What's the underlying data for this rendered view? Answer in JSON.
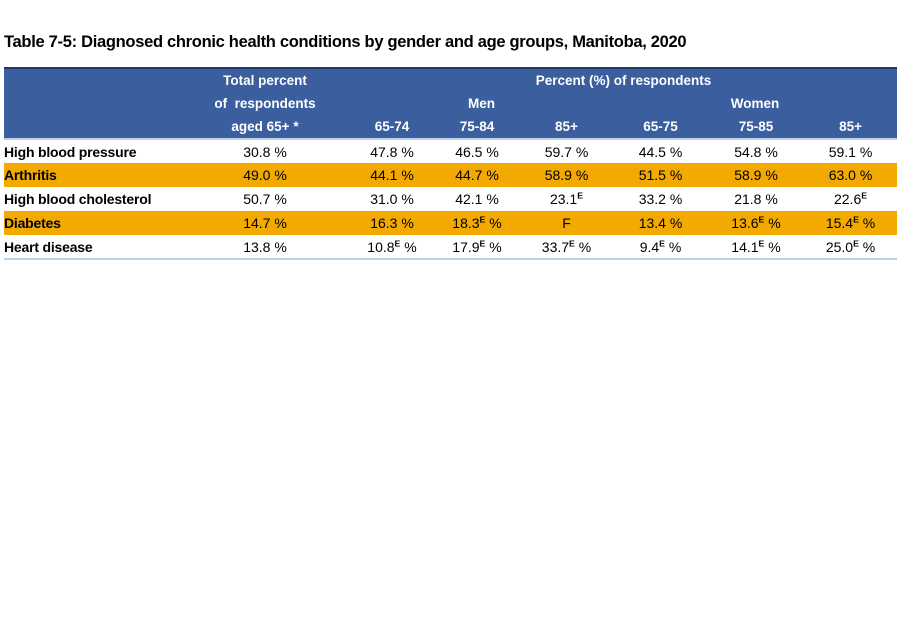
{
  "title": "Table 7-5: Diagnosed chronic health conditions by gender and age groups, Manitoba, 2020",
  "table": {
    "header": {
      "total_lines": [
        "Total percent",
        "of  respondents",
        "aged 65+ *"
      ],
      "group_title": "Percent (%) of respondents",
      "men_label": "Men",
      "women_label": "Women",
      "age_columns": [
        "65-74",
        "75-84",
        "85+",
        "65-75",
        "75-85",
        "85+"
      ]
    },
    "rows": [
      {
        "label": "High blood pressure",
        "highlight": false,
        "cells": [
          "30.8 %",
          "47.8 %",
          "46.5 %",
          "59.7 %",
          "44.5 %",
          "54.8 %",
          "59.1 %"
        ]
      },
      {
        "label": "Arthritis",
        "highlight": true,
        "cells": [
          "49.0 %",
          "44.1 %",
          "44.7 %",
          "58.9 %",
          "51.5 %",
          "58.9 %",
          "63.0 %"
        ]
      },
      {
        "label": "High blood cholesterol",
        "highlight": false,
        "cells": [
          "50.7 %",
          "31.0 %",
          "42.1 %",
          "23.1^E",
          "33.2 %",
          "21.8 %",
          "22.6^E"
        ]
      },
      {
        "label": "Diabetes",
        "highlight": true,
        "cells": [
          "14.7 %",
          "16.3 %",
          "18.3^E %",
          "F",
          "13.4 %",
          "13.6^E %",
          "15.4^E %"
        ]
      },
      {
        "label": "Heart disease",
        "highlight": false,
        "cells": [
          "13.8 %",
          "10.8^E %",
          "17.9^E %",
          "33.7^E %",
          "9.4^E %",
          "14.1^E %",
          "25.0^E %"
        ]
      }
    ]
  },
  "colors": {
    "header_bg": "#3A5E9E",
    "header_border": "#1F3864",
    "header_text": "#FFFFFF",
    "divider_light": "#BDD1EA",
    "highlight_row": "#F2A900",
    "body_text": "#000000"
  }
}
